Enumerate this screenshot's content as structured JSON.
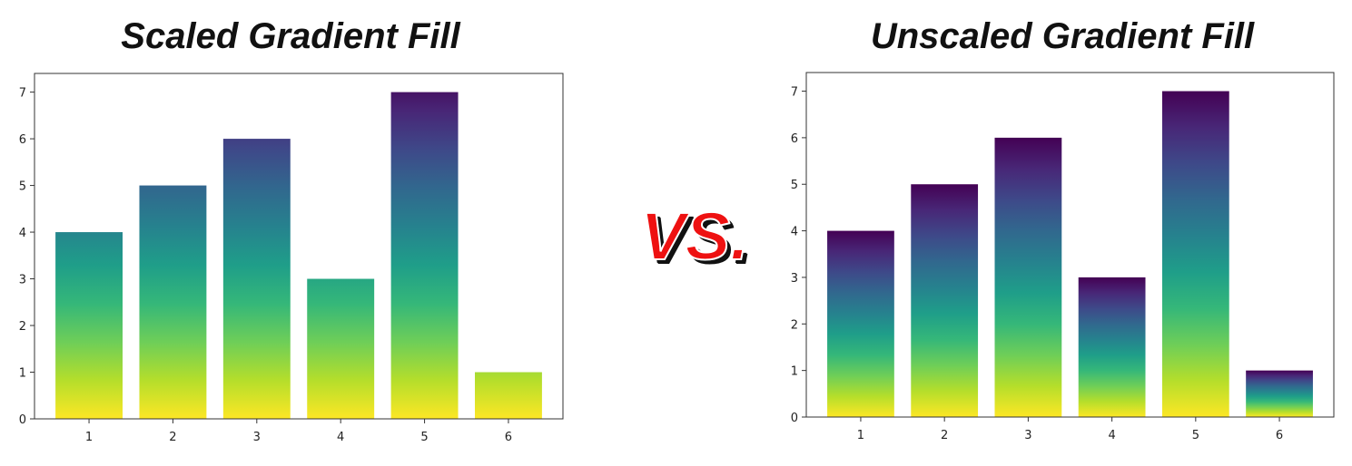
{
  "titles": {
    "left": "Scaled Gradient Fill",
    "vs": "VS.",
    "right": "Unscaled Gradient Fill"
  },
  "colormap": {
    "name": "viridis",
    "stops": [
      "#440154",
      "#482777",
      "#3e4989",
      "#31688e",
      "#26828e",
      "#1f9e89",
      "#35b779",
      "#6ece58",
      "#b5de2b",
      "#fde725"
    ]
  },
  "chart_data": [
    {
      "type": "bar",
      "title": "Scaled Gradient Fill",
      "gradient": "scaled",
      "categories": [
        "1",
        "2",
        "3",
        "4",
        "5",
        "6"
      ],
      "values": [
        4,
        5,
        6,
        3,
        7,
        1
      ],
      "ylim": [
        0,
        7.4
      ],
      "yticks": [
        0,
        1,
        2,
        3,
        4,
        5,
        6,
        7
      ],
      "xlabel": "",
      "ylabel": "",
      "grid": false
    },
    {
      "type": "bar",
      "title": "Unscaled Gradient Fill",
      "gradient": "unscaled",
      "categories": [
        "1",
        "2",
        "3",
        "4",
        "5",
        "6"
      ],
      "values": [
        4,
        5,
        6,
        3,
        7,
        1
      ],
      "ylim": [
        0,
        7.4
      ],
      "yticks": [
        0,
        1,
        2,
        3,
        4,
        5,
        6,
        7
      ],
      "xlabel": "",
      "ylabel": "",
      "grid": false
    }
  ]
}
